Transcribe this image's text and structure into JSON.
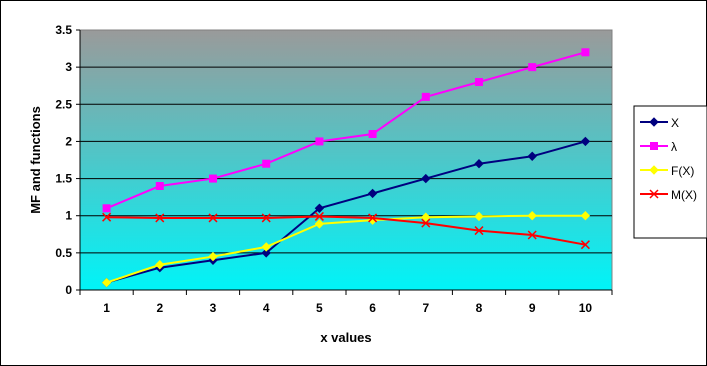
{
  "chart_data": {
    "type": "line",
    "title": "",
    "xlabel": "x values",
    "ylabel": "MF and functions",
    "categories": [
      "1",
      "2",
      "3",
      "4",
      "5",
      "6",
      "7",
      "8",
      "9",
      "10"
    ],
    "ylim": [
      0,
      3.5
    ],
    "yticks": [
      "0",
      "0.5",
      "1",
      "1.5",
      "2",
      "2.5",
      "3",
      "3.5"
    ],
    "grid": true,
    "legend_position": "right",
    "background": {
      "top": "#9a9a9a",
      "bottom": "#00f4f8"
    },
    "series": [
      {
        "name": "X",
        "color": "#00007f",
        "marker": "diamond",
        "values": [
          0.1,
          0.3,
          0.4,
          0.5,
          1.1,
          1.3,
          1.5,
          1.7,
          1.8,
          2.0
        ]
      },
      {
        "name": "λ",
        "color": "#ff00ff",
        "marker": "square",
        "values": [
          1.1,
          1.4,
          1.5,
          1.7,
          2.0,
          2.1,
          2.6,
          2.8,
          3.0,
          3.2
        ]
      },
      {
        "name": "F(X)",
        "color": "#ffff00",
        "marker": "diamond",
        "values": [
          0.1,
          0.34,
          0.45,
          0.58,
          0.89,
          0.94,
          0.98,
          0.99,
          1.0,
          1.0
        ]
      },
      {
        "name": "M(X)",
        "color": "#ff0000",
        "marker": "x",
        "values": [
          0.98,
          0.97,
          0.97,
          0.97,
          0.99,
          0.97,
          0.9,
          0.8,
          0.74,
          0.61
        ]
      }
    ]
  }
}
